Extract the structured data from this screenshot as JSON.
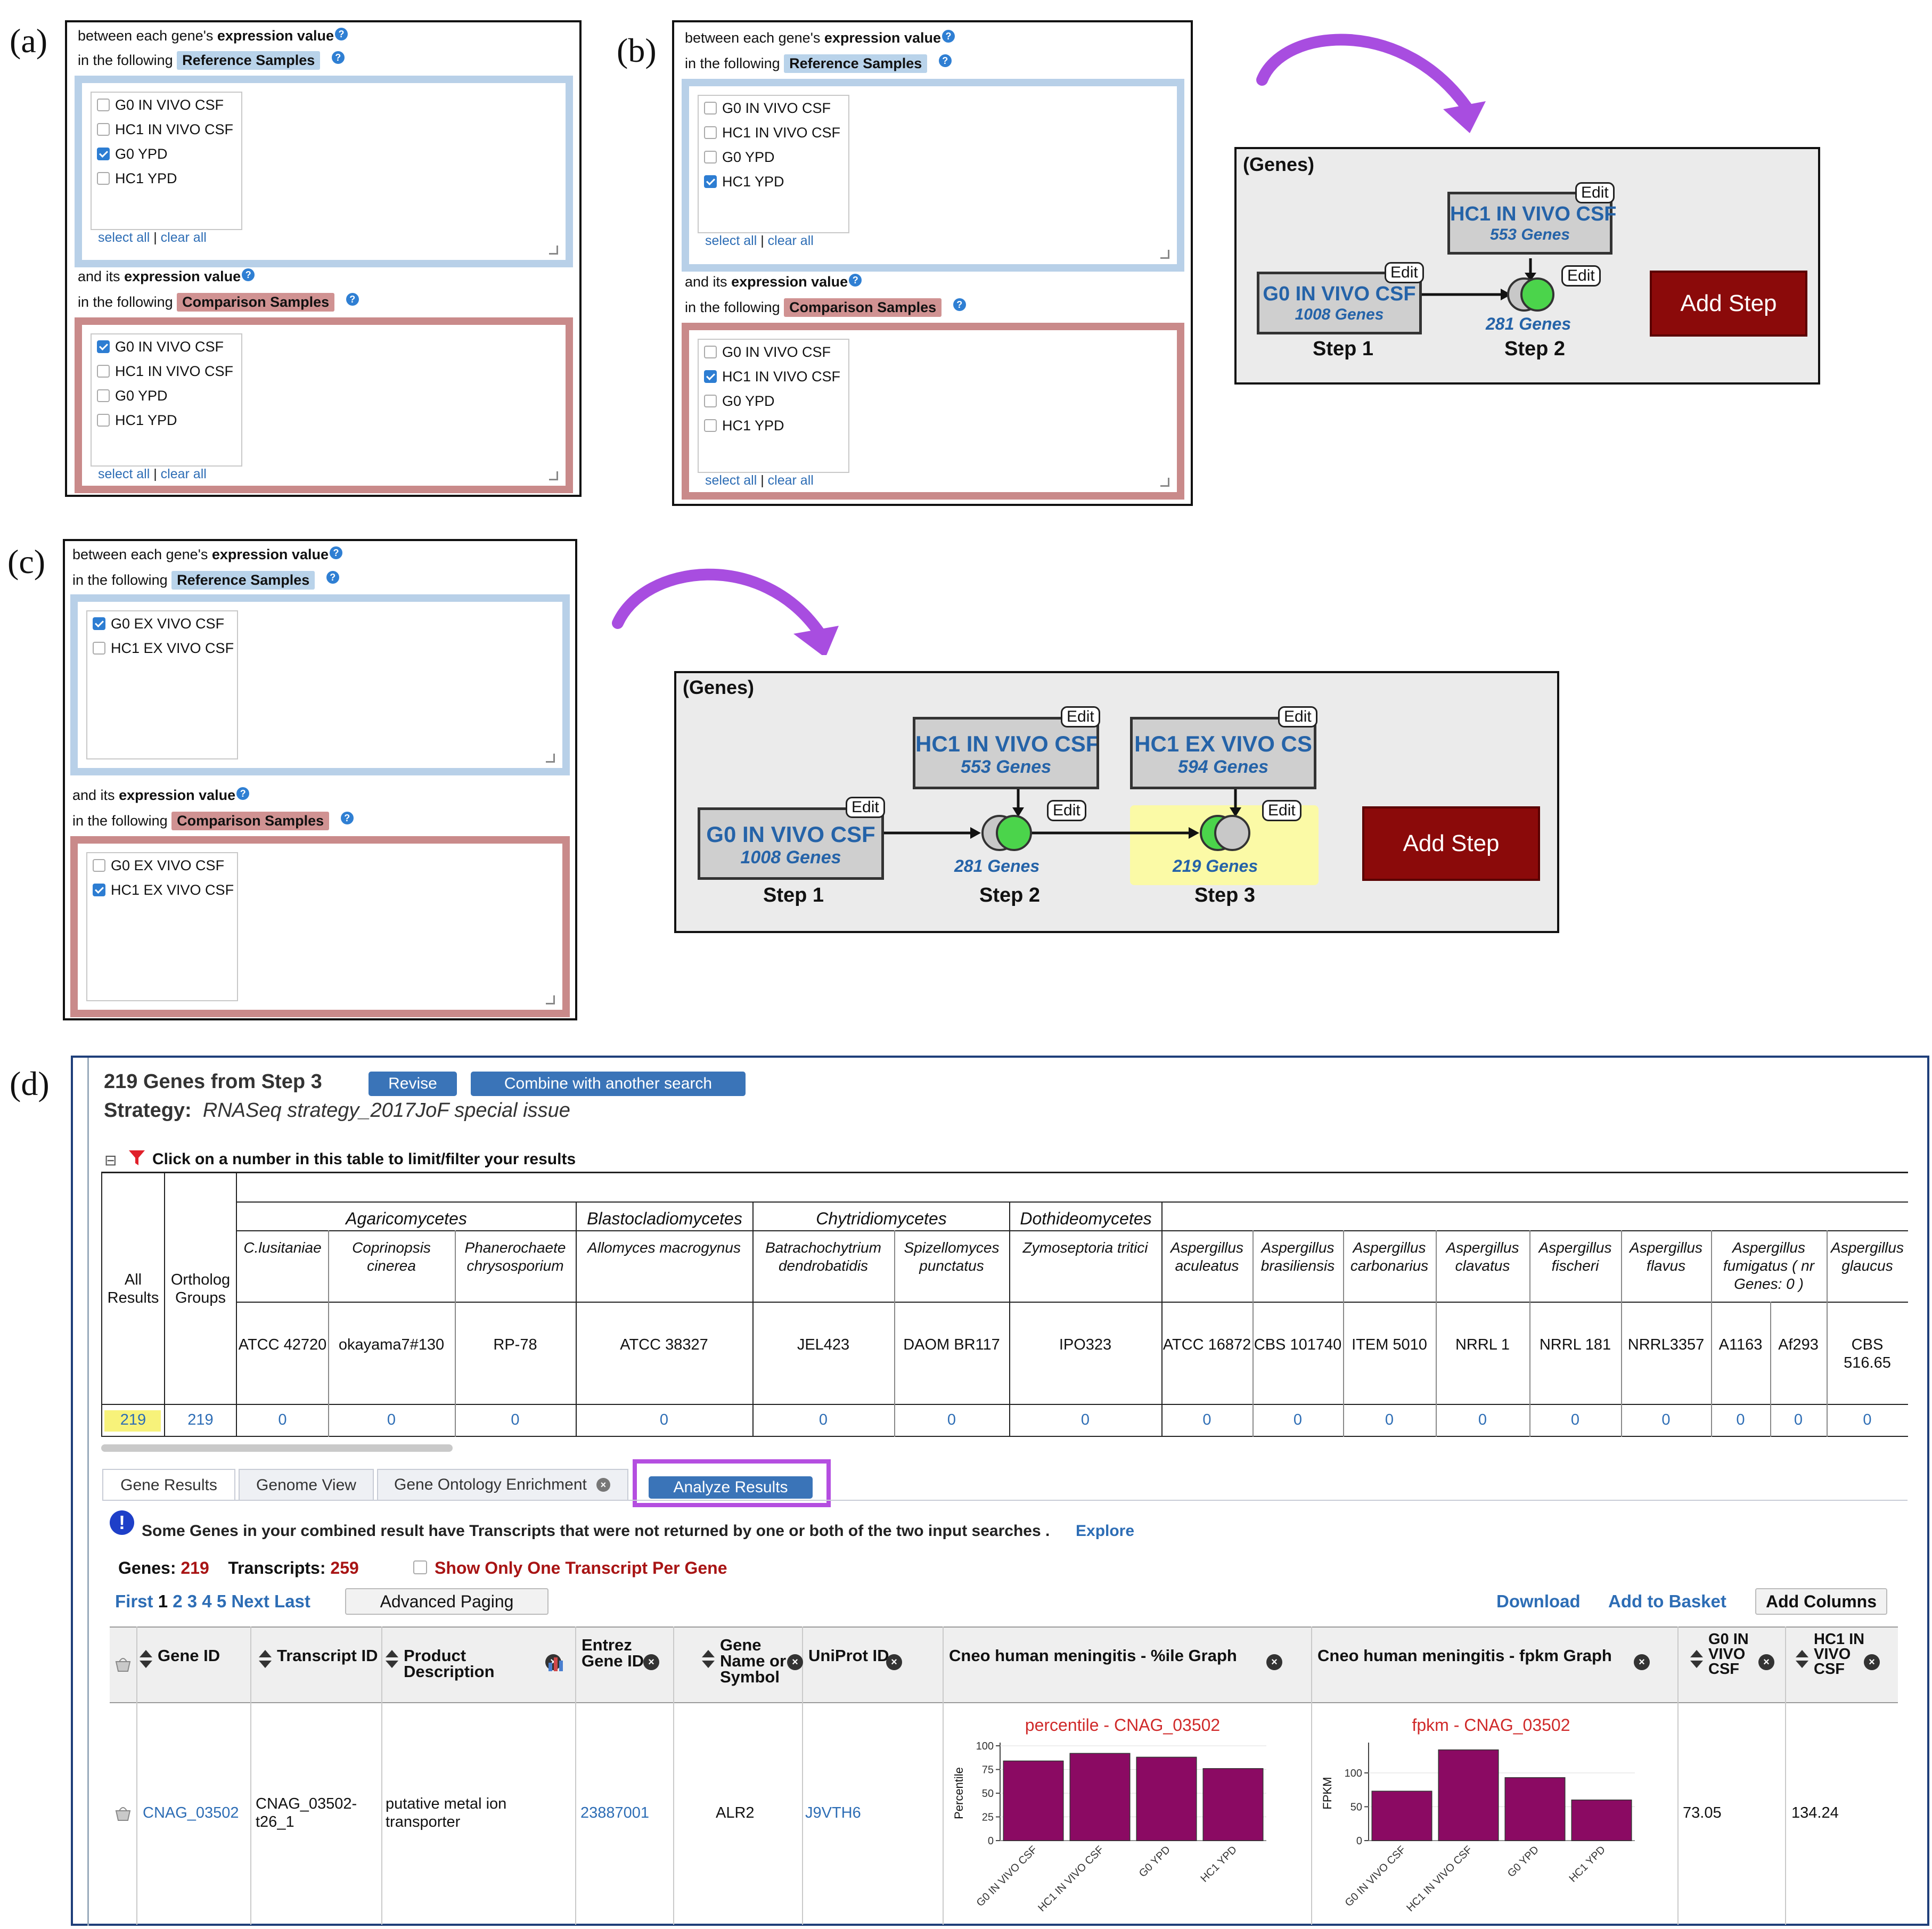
{
  "panel_labels": {
    "a": "(a)",
    "b": "(b)",
    "c": "(c)",
    "d": "(d)"
  },
  "selector": {
    "line1_prefix": "between each gene's ",
    "line1_bold": "expression value",
    "line2_prefix": "in the following ",
    "ref_tag": "Reference Samples",
    "line3_prefix": "and its ",
    "line3_bold": "expression value",
    "cmp_tag": "Comparison Samples",
    "select_all": "select all",
    "separator": "|",
    "clear_all": "clear all",
    "help": "?"
  },
  "panel_a": {
    "ref_samples": [
      {
        "label": "G0 IN VIVO CSF",
        "checked": false
      },
      {
        "label": "HC1 IN VIVO CSF",
        "checked": false
      },
      {
        "label": "G0 YPD",
        "checked": true
      },
      {
        "label": "HC1 YPD",
        "checked": false
      }
    ],
    "cmp_samples": [
      {
        "label": "G0 IN VIVO CSF",
        "checked": true
      },
      {
        "label": "HC1 IN VIVO CSF",
        "checked": false
      },
      {
        "label": "G0 YPD",
        "checked": false
      },
      {
        "label": "HC1 YPD",
        "checked": false
      }
    ]
  },
  "panel_b": {
    "ref_samples": [
      {
        "label": "G0 IN VIVO CSF",
        "checked": false
      },
      {
        "label": "HC1 IN VIVO CSF",
        "checked": false
      },
      {
        "label": "G0 YPD",
        "checked": false
      },
      {
        "label": "HC1 YPD",
        "checked": true
      }
    ],
    "cmp_samples": [
      {
        "label": "G0 IN VIVO CSF",
        "checked": false
      },
      {
        "label": "HC1 IN VIVO CSF",
        "checked": true
      },
      {
        "label": "G0 YPD",
        "checked": false
      },
      {
        "label": "HC1 YPD",
        "checked": false
      }
    ]
  },
  "panel_c": {
    "ref_samples": [
      {
        "label": "G0 EX VIVO CSF",
        "checked": true
      },
      {
        "label": "HC1 EX VIVO CSF",
        "checked": false
      }
    ],
    "cmp_samples": [
      {
        "label": "G0 EX VIVO CSF",
        "checked": false
      },
      {
        "label": "HC1 EX VIVO CSF",
        "checked": true
      }
    ]
  },
  "strategy_b": {
    "title": "(Genes)",
    "step1": {
      "name": "G0 IN VIVO CSF",
      "count": "1008 Genes",
      "label": "Step 1"
    },
    "step2": {
      "name": "HC1 IN VIVO CSF",
      "count": "553 Genes",
      "label": "Step 2",
      "combined": "281 Genes"
    },
    "edit": "Edit",
    "add_step": "Add Step"
  },
  "strategy_c": {
    "title": "(Genes)",
    "step1": {
      "name": "G0 IN VIVO CSF",
      "count": "1008 Genes",
      "label": "Step 1"
    },
    "step2": {
      "name": "HC1 IN VIVO CSF",
      "count": "553 Genes",
      "label": "Step 2",
      "combined": "281 Genes"
    },
    "step3": {
      "name": "HC1 EX VIVO CS",
      "count": "594 Genes",
      "label": "Step 3",
      "combined": "219 Genes"
    },
    "edit": "Edit",
    "add_step": "Add Step"
  },
  "results": {
    "heading": "219 Genes from Step 3",
    "revise": "Revise",
    "combine": "Combine with another search",
    "strategy_label": "Strategy:",
    "strategy_name": "RNASeq strategy_2017JoF special issue",
    "filter_toggle": "⊟",
    "filter_hint": "Click on a number in this table to limit/filter your results",
    "filter": {
      "all_results": "All Results",
      "ortholog_groups": "Ortholog Groups",
      "classes": [
        "Agaricomycetes",
        "Blastocladiomycetes",
        "Chytridiomycetes",
        "Dothideomycetes"
      ],
      "species": [
        "C.lusitaniae",
        "Coprinopsis cinerea",
        "Phanerochaete chrysosporium",
        "Allomyces macrogynus",
        "Batrachochytrium dendrobatidis",
        "Spizellomyces punctatus",
        "Zymoseptoria tritici",
        "Aspergillus aculeatus",
        "Aspergillus brasiliensis",
        "Aspergillus carbonarius",
        "Aspergillus clavatus",
        "Aspergillus fischeri",
        "Aspergillus flavus",
        "Aspergillus fumigatus ( nr Genes: 0 )",
        "Aspergillus glaucus"
      ],
      "strains": [
        "ATCC 42720",
        "okayama7#130",
        "RP-78",
        "ATCC 38327",
        "JEL423",
        "DAOM BR117",
        "IPO323",
        "ATCC 16872",
        "CBS 101740",
        "ITEM 5010",
        "NRRL 1",
        "NRRL 181",
        "NRRL3357",
        "A1163",
        "Af293",
        "CBS 516.65"
      ],
      "all_count": "219",
      "ortholog_count": "219",
      "counts": [
        "0",
        "0",
        "0",
        "0",
        "0",
        "0",
        "0",
        "0",
        "0",
        "0",
        "0",
        "0",
        "0",
        "0",
        "0",
        "0"
      ]
    },
    "tabs": [
      "Gene Results",
      "Genome View",
      "Gene Ontology Enrichment",
      "Analyze Results"
    ],
    "notice": "Some Genes in your combined result have Transcripts that were not returned by one or both of the two input searches .",
    "explore": "Explore",
    "genes_label": "Genes:",
    "genes_value": "219",
    "transcripts_label": "Transcripts:",
    "transcripts_value": "259",
    "show_one": "Show Only One Transcript Per Gene",
    "paging": {
      "first": "First",
      "current": "1",
      "pages": [
        "2",
        "3",
        "4",
        "5"
      ],
      "next": "Next",
      "last": "Last",
      "advanced": "Advanced Paging"
    },
    "download": "Download",
    "add_basket": "Add to Basket",
    "add_columns": "Add Columns",
    "columns": [
      "Gene ID",
      "Transcript ID",
      "Product Description",
      "Entrez Gene ID",
      "Gene Name or Symbol",
      "UniProt ID",
      "Cneo human meningitis - %ile Graph",
      "Cneo human meningitis - fpkm Graph",
      "G0 IN VIVO CSF",
      "HC1 IN VIVO CSF"
    ],
    "row": {
      "gene_id": "CNAG_03502",
      "transcript_id": "CNAG_03502-t26_1",
      "product": "putative metal ion transporter",
      "entrez": "23887001",
      "gene_name": "ALR2",
      "uniprot": "J9VTH6",
      "g0": "73.05",
      "hc1": "134.24"
    }
  },
  "chart_data": [
    {
      "type": "bar",
      "title": "percentile - CNAG_03502",
      "ylabel": "Percentile",
      "categories": [
        "G0 IN VIVO CSF",
        "HC1 IN VIVO CSF",
        "G0 YPD",
        "HC1 YPD"
      ],
      "values": [
        84,
        92,
        88,
        76
      ],
      "ylim": [
        0,
        100
      ],
      "yticks": [
        0,
        25,
        50,
        75,
        100
      ],
      "color": "#8b0a63"
    },
    {
      "type": "bar",
      "title": "fpkm - CNAG_03502",
      "ylabel": "FPKM",
      "categories": [
        "G0 IN VIVO CSF",
        "HC1 IN VIVO CSF",
        "G0 YPD",
        "HC1 YPD"
      ],
      "values": [
        73,
        134,
        93,
        60
      ],
      "ylim": [
        0,
        140
      ],
      "yticks": [
        0,
        50,
        100
      ],
      "color": "#8b0a63"
    }
  ],
  "colors": {
    "arrow": "#a84de0",
    "highlight": "#b44ee0",
    "add_step": "#8b0a0a",
    "link": "#2d6db5"
  }
}
